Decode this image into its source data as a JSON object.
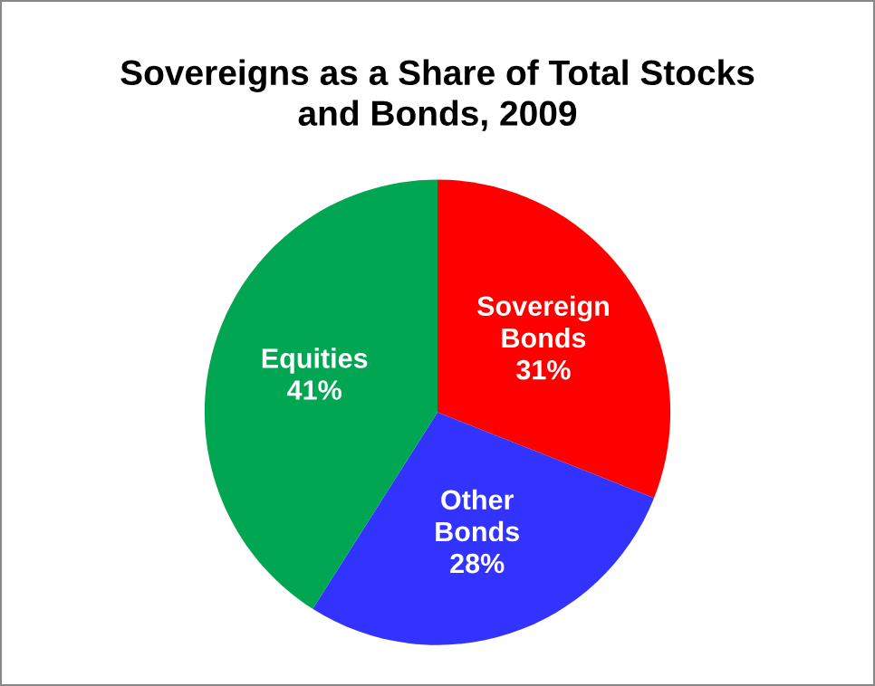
{
  "chart_data": {
    "type": "pie",
    "title": "Sovereigns as a Share of Total Stocks\nand Bonds, 2009",
    "categories": [
      "Sovereign Bonds",
      "Other Bonds",
      "Equities"
    ],
    "values": [
      31,
      28,
      41
    ],
    "colors": [
      "#ff0000",
      "#3333ff",
      "#00a651"
    ],
    "value_labels": [
      "31%",
      "28%",
      "41%"
    ],
    "legend": false
  }
}
